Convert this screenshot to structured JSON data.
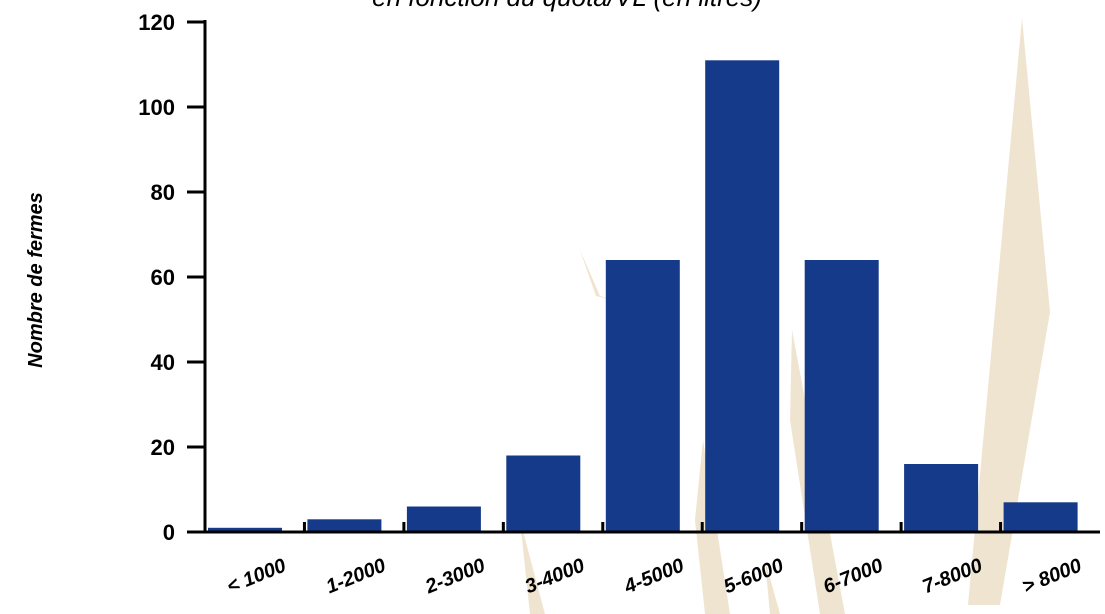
{
  "chart_data": {
    "type": "bar",
    "title": "en fonction du quota/VL (en litres)",
    "ylabel": "Nombre de fermes",
    "xlabel": "",
    "categories": [
      "< 1000",
      "1-2000",
      "2-3000",
      "3-4000",
      "4-5000",
      "5-6000",
      "6-7000",
      "7-8000",
      "> 8000"
    ],
    "values": [
      1,
      3,
      6,
      18,
      64,
      111,
      64,
      16,
      7
    ],
    "ylim": [
      0,
      120
    ],
    "yticks": [
      0,
      20,
      40,
      60,
      80,
      100,
      120
    ],
    "grid": false,
    "legend": "none",
    "colors": {
      "bar": "#163a8a",
      "watermark": "#efe4cf"
    }
  },
  "watermark": {
    "letters": [
      "/",
      "b"
    ]
  }
}
